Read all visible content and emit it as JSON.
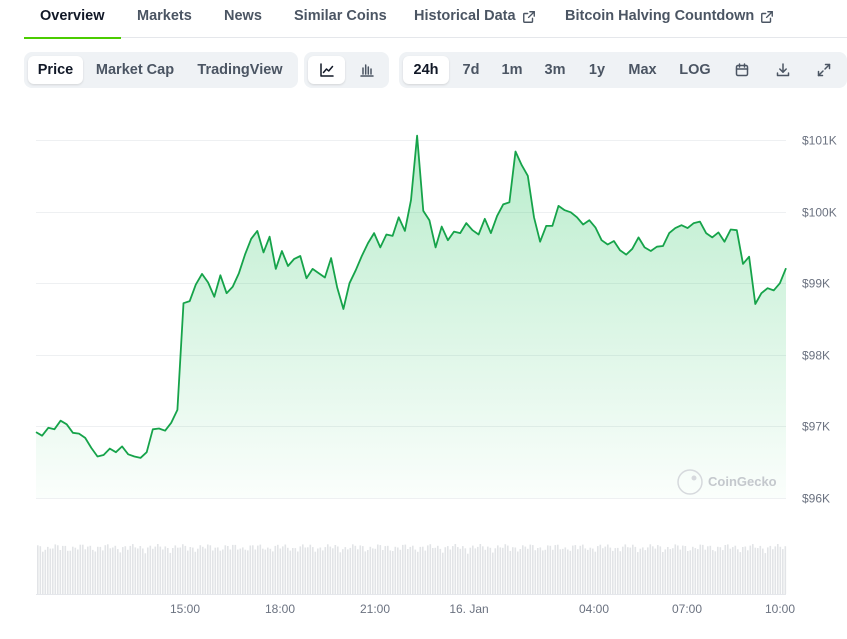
{
  "tabs": [
    {
      "label": "Overview",
      "active": true
    },
    {
      "label": "Markets"
    },
    {
      "label": "News"
    },
    {
      "label": "Similar Coins"
    },
    {
      "label": "Historical Data",
      "icon": "external-link-icon"
    },
    {
      "label": "Bitcoin Halving Countdown",
      "icon": "external-link-icon"
    }
  ],
  "toolbar": {
    "view_buttons": [
      {
        "label": "Price",
        "active": true
      },
      {
        "label": "Market Cap"
      },
      {
        "label": "TradingView"
      }
    ],
    "chart_type_icons": [
      "line-chart-icon",
      "candlestick-chart-icon"
    ],
    "ranges": [
      {
        "label": "24h",
        "active": true
      },
      {
        "label": "7d"
      },
      {
        "label": "1m"
      },
      {
        "label": "3m"
      },
      {
        "label": "1y"
      },
      {
        "label": "Max"
      },
      {
        "label": "LOG"
      }
    ],
    "tool_icons": [
      "calendar-icon",
      "download-icon",
      "fullscreen-icon"
    ]
  },
  "watermark": "CoinGecko",
  "colors": {
    "accent": "#4bcc00",
    "line": "#16a34a",
    "grid": "#eef0f2",
    "volume": "#e2e4e7"
  },
  "chart_data": {
    "type": "area",
    "series": [
      {
        "values": [
          96920,
          96870,
          96980,
          96960,
          97080,
          97030,
          96910,
          96900,
          96840,
          96700,
          96580,
          96600,
          96690,
          96640,
          96720,
          96610,
          96580,
          96560,
          96640,
          96960,
          96970,
          96940,
          97050,
          97230,
          98720,
          98750,
          98980,
          99130,
          99010,
          98810,
          99110,
          98860,
          98950,
          99140,
          99400,
          99620,
          99730,
          99430,
          99650,
          99200,
          99450,
          99240,
          99340,
          99380,
          99070,
          99200,
          99140,
          99080,
          99350,
          98940,
          98640,
          99000,
          99180,
          99380,
          99560,
          99700,
          99500,
          99680,
          99660,
          99920,
          99730,
          100160,
          101060,
          100010,
          99880,
          99500,
          99790,
          99600,
          99720,
          99700,
          99840,
          99740,
          99680,
          99900,
          99700,
          99940,
          100100,
          100130,
          100840,
          100650,
          100500,
          99920,
          99580,
          99800,
          99800,
          100080,
          100020,
          99990,
          99920,
          99820,
          99880,
          99780,
          99600,
          99540,
          99590,
          99460,
          99400,
          99480,
          99640,
          99500,
          99450,
          99510,
          99520,
          99700,
          99770,
          99810,
          99770,
          99840,
          99860,
          99700,
          99640,
          99710,
          99580,
          99750,
          99740,
          99270,
          99370,
          98710,
          98860,
          98930,
          98900,
          99000,
          99210
        ]
      }
    ],
    "x_ticks": [
      "15:00",
      "18:00",
      "21:00",
      "16. Jan",
      "04:00",
      "07:00",
      "10:00"
    ],
    "y_ticks": [
      "$96K",
      "$97K",
      "$98K",
      "$99K",
      "$100K",
      "$101K"
    ],
    "ylim": [
      96000,
      101000
    ],
    "grid": true
  }
}
